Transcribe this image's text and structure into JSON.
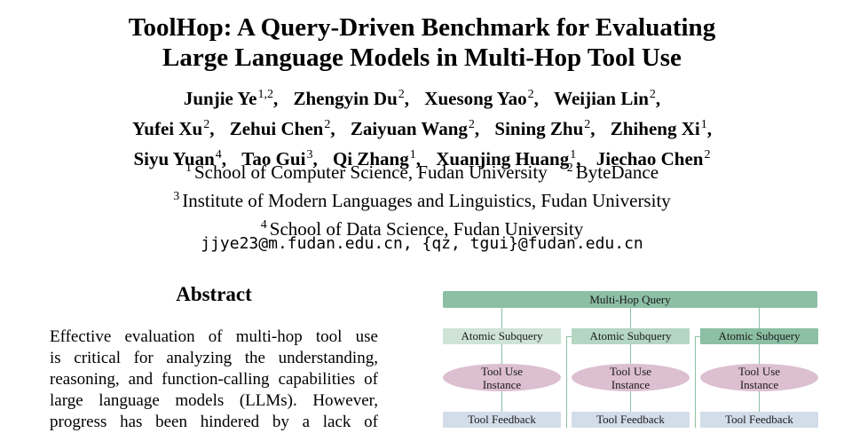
{
  "title": {
    "line1": "ToolHop: A Query-Driven Benchmark for Evaluating",
    "line2": "Large Language Models in Multi-Hop Tool Use"
  },
  "authors": {
    "row1": [
      {
        "name": "Junjie Ye",
        "sup": "1,2"
      },
      {
        "name": "Zhengyin Du",
        "sup": "2"
      },
      {
        "name": "Xuesong Yao",
        "sup": "2"
      },
      {
        "name": "Weijian Lin",
        "sup": "2"
      }
    ],
    "row2": [
      {
        "name": "Yufei Xu",
        "sup": "2"
      },
      {
        "name": "Zehui Chen",
        "sup": "2"
      },
      {
        "name": "Zaiyuan Wang",
        "sup": "2"
      },
      {
        "name": "Sining Zhu",
        "sup": "2"
      },
      {
        "name": "Zhiheng Xi",
        "sup": "1"
      }
    ],
    "row3": [
      {
        "name": "Siyu Yuan",
        "sup": "4"
      },
      {
        "name": "Tao Gui",
        "sup": "3"
      },
      {
        "name": "Qi Zhang",
        "sup": "1"
      },
      {
        "name": "Xuanjing Huang",
        "sup": "1"
      },
      {
        "name": "Jiechao Chen",
        "sup": "2"
      }
    ]
  },
  "affiliations": [
    {
      "sup": "1",
      "text": "School of Computer Science, Fudan University"
    },
    {
      "sup": "2",
      "text": "ByteDance"
    },
    {
      "sup": "3",
      "text": "Institute of Modern Languages and Linguistics, Fudan University"
    },
    {
      "sup": "4",
      "text": "School of Data Science, Fudan University"
    }
  ],
  "email": "jjye23@m.fudan.edu.cn, {qz, tgui}@fudan.edu.cn",
  "abstract": {
    "heading": "Abstract",
    "lines": [
      [
        "Effective",
        "evaluation",
        "of",
        "multi-hop",
        "tool",
        "use"
      ],
      [
        "is",
        "critical",
        "for",
        "analyzing",
        "the",
        "understanding,"
      ],
      [
        "reasoning,",
        "and",
        "function-calling",
        "capabilities",
        "of"
      ],
      [
        "large",
        "language",
        "models",
        "(LLMs).",
        "However,"
      ],
      [
        "progress",
        "has",
        "been",
        "hindered",
        "by",
        "a",
        "lack",
        "of"
      ]
    ]
  },
  "figure": {
    "query_label": "Multi-Hop Query",
    "columns": [
      {
        "subquery": "Atomic Subquery",
        "instance": [
          "Tool Use",
          "Instance"
        ],
        "feedback": "Tool Feedback"
      },
      {
        "subquery": "Atomic Subquery",
        "instance": [
          "Tool Use",
          "Instance"
        ],
        "feedback": "Tool Feedback"
      },
      {
        "subquery": "Atomic Subquery",
        "instance": [
          "Tool Use",
          "Instance"
        ],
        "feedback": "Tool Feedback"
      }
    ],
    "colors": {
      "query_bar": "#8cbfa4",
      "subquery_1": "#cfe3d7",
      "subquery_2": "#b4d6c3",
      "subquery_3": "#8cbfa4",
      "instance": "#dcbfd0",
      "feedback": "#d3ddea"
    }
  }
}
